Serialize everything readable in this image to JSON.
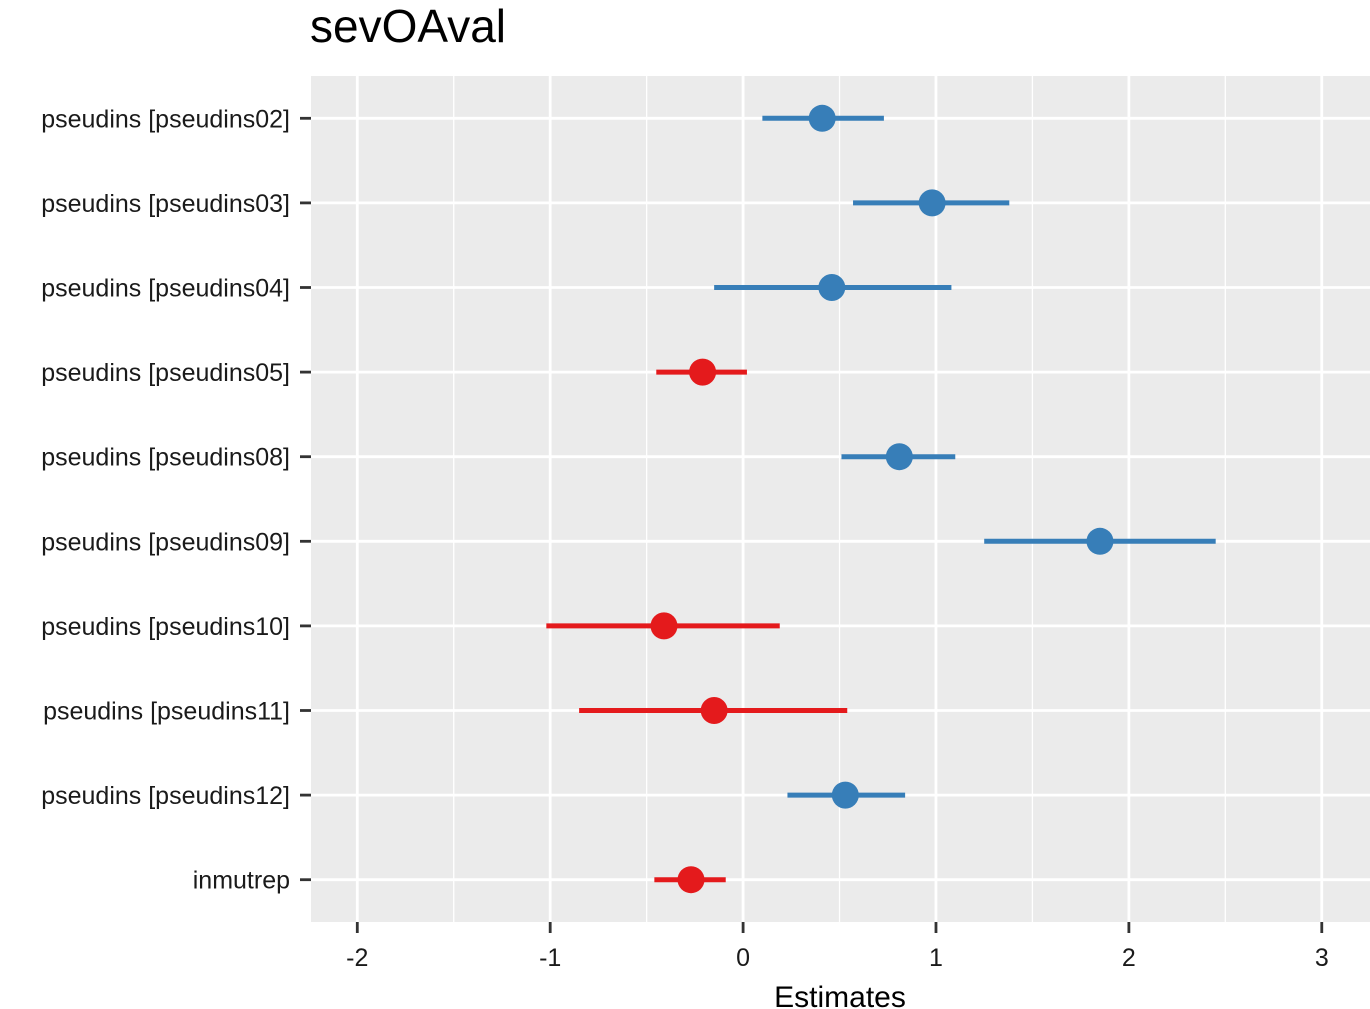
{
  "chart_data": {
    "type": "scatter",
    "subtype": "forest-plot",
    "title": "sevOAval",
    "xlabel": "Estimates",
    "ylabel": "",
    "xlim": [
      -2.24,
      3.25
    ],
    "xticks": [
      -2,
      -1,
      0,
      1,
      2,
      3
    ],
    "xtick_labels": [
      "-2",
      "-1",
      "0",
      "1",
      "2",
      "3"
    ],
    "grid": true,
    "legend": "none",
    "colors": {
      "positive": "#377EB8",
      "negative": "#E41A1C",
      "panel": "#EBEBEB",
      "grid": "#FFFFFF"
    },
    "categories": [
      "pseudins [pseudins02]",
      "pseudins [pseudins03]",
      "pseudins [pseudins04]",
      "pseudins [pseudins05]",
      "pseudins [pseudins08]",
      "pseudins [pseudins09]",
      "pseudins [pseudins10]",
      "pseudins [pseudins11]",
      "pseudins [pseudins12]",
      "inmutrep"
    ],
    "estimates": [
      0.41,
      0.98,
      0.46,
      -0.21,
      0.81,
      1.85,
      -0.41,
      -0.15,
      0.53,
      -0.27
    ],
    "ci_low": [
      0.1,
      0.57,
      -0.15,
      -0.45,
      0.51,
      1.25,
      -1.02,
      -0.85,
      0.23,
      -0.46
    ],
    "ci_high": [
      0.73,
      1.38,
      1.08,
      0.02,
      1.1,
      2.45,
      0.19,
      0.54,
      0.84,
      -0.09
    ]
  }
}
